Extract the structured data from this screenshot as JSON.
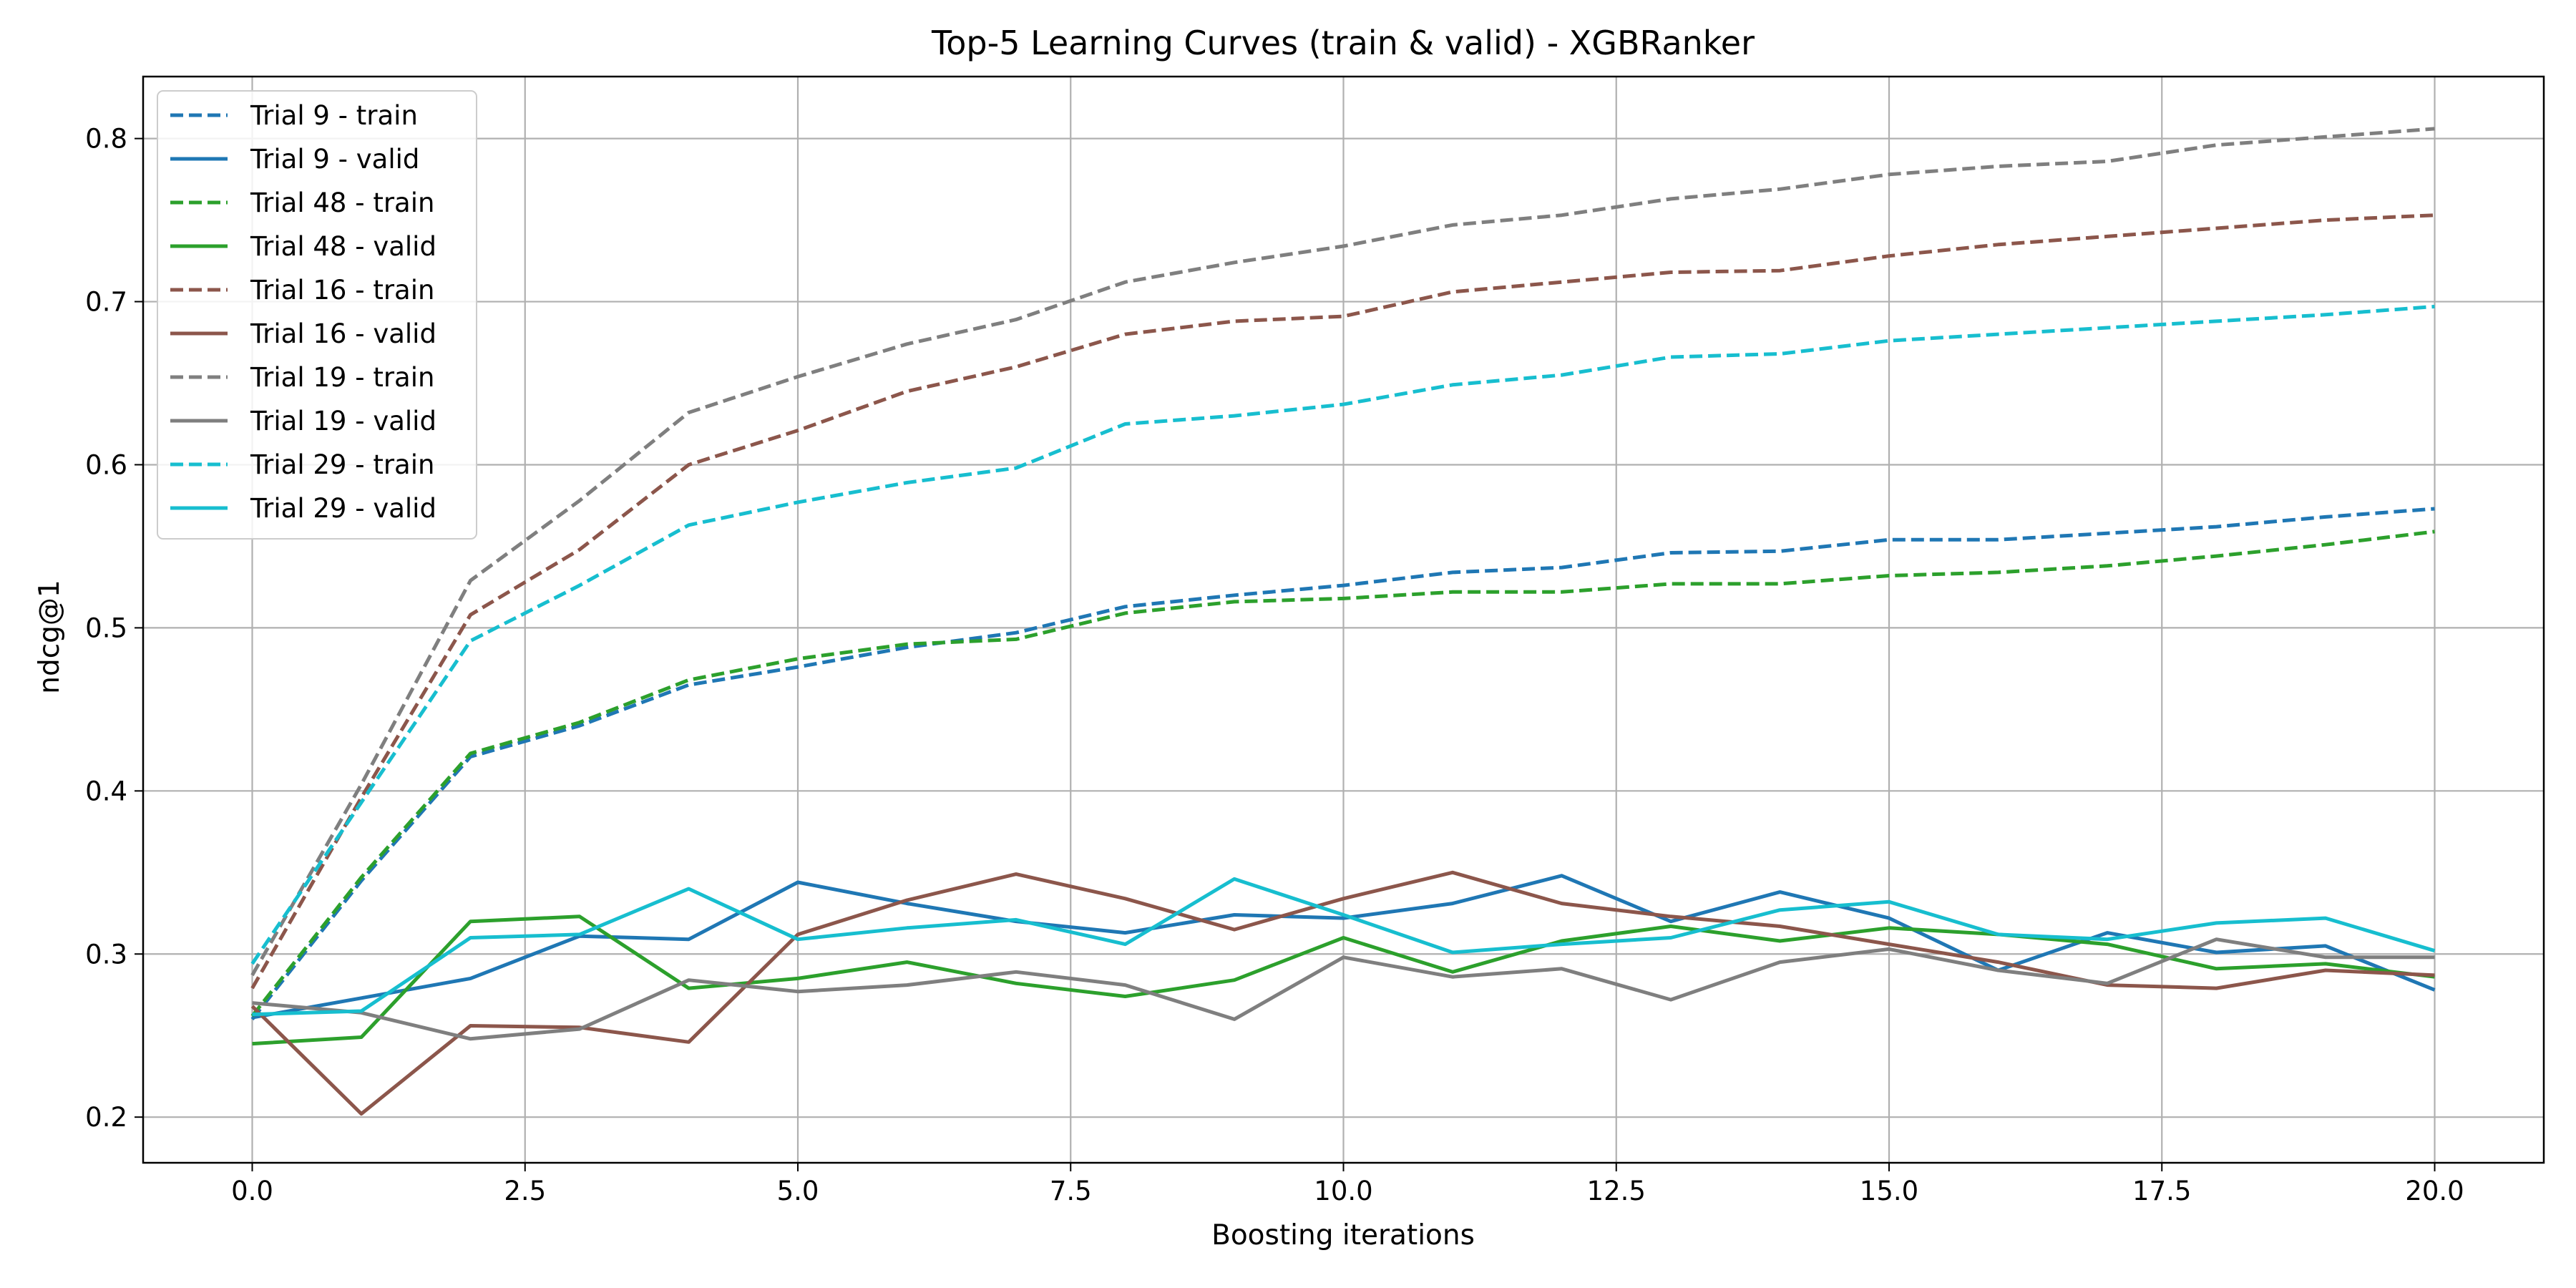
{
  "chart_data": {
    "type": "line",
    "title": "Top-5 Learning Curves (train & valid) - XGBRanker",
    "xlabel": "Boosting iterations",
    "ylabel": "ndcg@1",
    "xlim": [
      -1,
      21
    ],
    "ylim": [
      0.172,
      0.838
    ],
    "x_ticks": [
      0,
      2.5,
      5,
      7.5,
      10,
      12.5,
      15,
      17.5,
      20
    ],
    "x_tick_labels": [
      "0.0",
      "2.5",
      "5.0",
      "7.5",
      "10.0",
      "12.5",
      "15.0",
      "17.5",
      "20.0"
    ],
    "y_ticks": [
      0.2,
      0.3,
      0.4,
      0.5,
      0.6,
      0.7,
      0.8
    ],
    "y_tick_labels": [
      "0.2",
      "0.3",
      "0.4",
      "0.5",
      "0.6",
      "0.7",
      "0.8"
    ],
    "grid": true,
    "legend_position": "top-left",
    "x": [
      0,
      1,
      2,
      3,
      4,
      5,
      6,
      7,
      8,
      9,
      10,
      11,
      12,
      13,
      14,
      15,
      16,
      17,
      18,
      19,
      20
    ],
    "series": [
      {
        "name": "Trial 9 - train",
        "color": "#1f77b4",
        "style": "dashed",
        "values": [
          0.26,
          0.345,
          0.421,
          0.44,
          0.465,
          0.476,
          0.488,
          0.497,
          0.513,
          0.52,
          0.526,
          0.534,
          0.537,
          0.546,
          0.547,
          0.554,
          0.554,
          0.558,
          0.562,
          0.568,
          0.573
        ]
      },
      {
        "name": "Trial 9 - valid",
        "color": "#1f77b4",
        "style": "solid",
        "values": [
          0.261,
          0.273,
          0.285,
          0.311,
          0.309,
          0.344,
          0.331,
          0.32,
          0.313,
          0.324,
          0.322,
          0.331,
          0.348,
          0.32,
          0.338,
          0.322,
          0.29,
          0.313,
          0.301,
          0.305,
          0.278
        ]
      },
      {
        "name": "Trial 48 - train",
        "color": "#2ca02c",
        "style": "dashed",
        "values": [
          0.262,
          0.347,
          0.423,
          0.442,
          0.468,
          0.481,
          0.49,
          0.493,
          0.509,
          0.516,
          0.518,
          0.522,
          0.522,
          0.527,
          0.527,
          0.532,
          0.534,
          0.538,
          0.544,
          0.551,
          0.559
        ]
      },
      {
        "name": "Trial 48 - valid",
        "color": "#2ca02c",
        "style": "solid",
        "values": [
          0.245,
          0.249,
          0.32,
          0.323,
          0.279,
          0.285,
          0.295,
          0.282,
          0.274,
          0.284,
          0.31,
          0.289,
          0.308,
          0.317,
          0.308,
          0.316,
          0.312,
          0.306,
          0.291,
          0.294,
          0.286
        ]
      },
      {
        "name": "Trial 16 - train",
        "color": "#8c564b",
        "style": "dashed",
        "values": [
          0.279,
          0.396,
          0.508,
          0.548,
          0.6,
          0.621,
          0.645,
          0.66,
          0.68,
          0.688,
          0.691,
          0.706,
          0.712,
          0.718,
          0.719,
          0.728,
          0.735,
          0.74,
          0.745,
          0.75,
          0.753
        ]
      },
      {
        "name": "Trial 16 - valid",
        "color": "#8c564b",
        "style": "solid",
        "values": [
          0.268,
          0.202,
          0.256,
          0.255,
          0.246,
          0.312,
          0.333,
          0.349,
          0.334,
          0.315,
          0.334,
          0.35,
          0.331,
          0.323,
          0.317,
          0.306,
          0.295,
          0.281,
          0.279,
          0.29,
          0.287
        ]
      },
      {
        "name": "Trial 19 - train",
        "color": "#7f7f7f",
        "style": "dashed",
        "values": [
          0.287,
          0.404,
          0.529,
          0.578,
          0.632,
          0.654,
          0.674,
          0.689,
          0.712,
          0.724,
          0.734,
          0.747,
          0.753,
          0.763,
          0.769,
          0.778,
          0.783,
          0.786,
          0.796,
          0.801,
          0.806
        ]
      },
      {
        "name": "Trial 19 - valid",
        "color": "#7f7f7f",
        "style": "solid",
        "values": [
          0.27,
          0.264,
          0.248,
          0.254,
          0.284,
          0.277,
          0.281,
          0.289,
          0.281,
          0.26,
          0.298,
          0.286,
          0.291,
          0.272,
          0.295,
          0.303,
          0.29,
          0.282,
          0.309,
          0.298,
          0.298
        ]
      },
      {
        "name": "Trial 29 - train",
        "color": "#17becf",
        "style": "dashed",
        "values": [
          0.294,
          0.393,
          0.492,
          0.526,
          0.563,
          0.577,
          0.589,
          0.598,
          0.625,
          0.63,
          0.637,
          0.649,
          0.655,
          0.666,
          0.668,
          0.676,
          0.68,
          0.684,
          0.688,
          0.692,
          0.697
        ]
      },
      {
        "name": "Trial 29 - valid",
        "color": "#17becf",
        "style": "solid",
        "values": [
          0.263,
          0.265,
          0.31,
          0.312,
          0.34,
          0.309,
          0.316,
          0.321,
          0.306,
          0.346,
          0.324,
          0.301,
          0.306,
          0.31,
          0.327,
          0.332,
          0.312,
          0.309,
          0.319,
          0.322,
          0.302
        ]
      }
    ]
  }
}
